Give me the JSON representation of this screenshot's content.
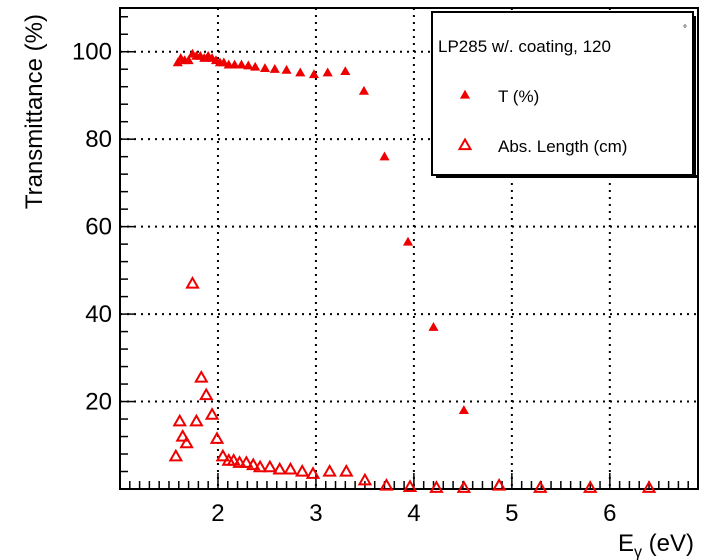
{
  "chart_data": {
    "type": "scatter",
    "title": "",
    "xlabel": "E",
    "xlabel_sub": "γ",
    "xlabel_unit": " (eV)",
    "ylabel": "Transmittance (%)",
    "xlim": [
      1.0,
      6.9
    ],
    "ylim": [
      0,
      110
    ],
    "grid": true,
    "x_ticks": [
      2,
      3,
      4,
      5,
      6
    ],
    "y_ticks": [
      20,
      40,
      60,
      80,
      100
    ],
    "x_tick_labels": [
      "2",
      "3",
      "4",
      "5",
      "6"
    ],
    "y_tick_labels": [
      "20",
      "40",
      "60",
      "80",
      "100"
    ],
    "marker_color": "#ee0000",
    "legend": {
      "placement": "top-right",
      "header": "LP285 w/. coating, 120",
      "header_suffix": "°",
      "entries": [
        "T (%)",
        "Abs. Length (cm)"
      ]
    },
    "series": [
      {
        "name": "T (%)",
        "marker": "filled-triangle",
        "x": [
          1.59,
          1.62,
          1.66,
          1.7,
          1.74,
          1.78,
          1.82,
          1.86,
          1.9,
          1.94,
          1.98,
          2.02,
          2.06,
          2.11,
          2.17,
          2.24,
          2.31,
          2.38,
          2.48,
          2.58,
          2.7,
          2.84,
          2.98,
          3.12,
          3.3,
          3.49,
          3.7,
          3.94,
          4.2,
          4.51
        ],
        "y": [
          97.5,
          98.5,
          98.0,
          98.0,
          99.5,
          99.0,
          99.0,
          98.5,
          99.0,
          98.5,
          98.0,
          97.5,
          97.5,
          97.0,
          97.0,
          97.0,
          96.8,
          96.5,
          96.2,
          96.0,
          95.8,
          95.2,
          94.8,
          95.2,
          95.5,
          91.0,
          76.0,
          56.5,
          37.0,
          18.0
        ]
      },
      {
        "name": "Abs. Length (cm)",
        "marker": "open-triangle",
        "x": [
          1.57,
          1.61,
          1.64,
          1.68,
          1.74,
          1.78,
          1.83,
          1.88,
          1.94,
          1.99,
          2.05,
          2.11,
          2.16,
          2.22,
          2.29,
          2.36,
          2.43,
          2.53,
          2.63,
          2.74,
          2.86,
          2.97,
          3.14,
          3.31,
          3.5,
          3.72,
          3.96,
          4.23,
          4.51,
          4.87,
          5.29,
          5.8,
          6.4
        ],
        "y": [
          7.5,
          15.5,
          12.0,
          10.5,
          47.0,
          15.5,
          25.5,
          21.5,
          17.0,
          11.5,
          7.5,
          6.5,
          6.5,
          6.0,
          6.0,
          5.5,
          5.0,
          5.0,
          4.5,
          4.5,
          4.0,
          3.5,
          4.0,
          4.0,
          2.0,
          0.8,
          0.5,
          0.3,
          0.3,
          0.8,
          0.3,
          0.3,
          0.3
        ]
      }
    ]
  }
}
